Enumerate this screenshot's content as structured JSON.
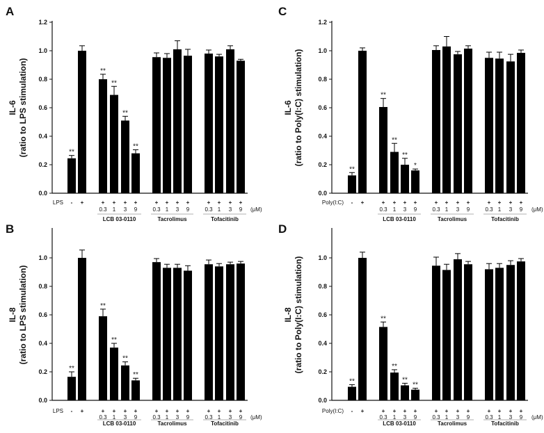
{
  "chart_data": [
    {
      "panel": "A",
      "type": "bar",
      "ylabel_top": "IL-6",
      "ylabel_bottom": "(ratio to LPS stimulation)",
      "ylim": [
        0,
        1.2
      ],
      "yticks": [
        "0.0",
        "0.2",
        "0.4",
        "0.6",
        "0.8",
        "1.0",
        "1.2"
      ],
      "stim_label": "LPS",
      "unit_label": "(μM)",
      "groups": [
        "LCB 03-0110",
        "Tacrolimus",
        "Tofacitinib"
      ],
      "conc_labels": [
        "0.3",
        "1",
        "3",
        "9"
      ],
      "control_labels": [
        "-",
        "+"
      ],
      "values": [
        0.245,
        1.0,
        0.8,
        0.69,
        0.51,
        0.28,
        0.955,
        0.95,
        1.01,
        0.965,
        0.98,
        0.96,
        1.01,
        0.93
      ],
      "errors": [
        0.02,
        0.035,
        0.035,
        0.06,
        0.03,
        0.025,
        0.03,
        0.03,
        0.06,
        0.045,
        0.025,
        0.015,
        0.025,
        0.01
      ],
      "significance": [
        "**",
        "",
        "**",
        "**",
        "**",
        "**",
        "",
        "",
        "",
        "",
        "",
        "",
        "",
        ""
      ]
    },
    {
      "panel": "B",
      "type": "bar",
      "ylabel_top": "IL-8",
      "ylabel_bottom": "(ratio to LPS stimulation)",
      "ylim": [
        0,
        1.2
      ],
      "yticks": [
        "0.0",
        "0.2",
        "0.4",
        "0.6",
        "0.8",
        "1.0"
      ],
      "stim_label": "LPS",
      "unit_label": "(μM)",
      "groups": [
        "LCB 03-0110",
        "Tacrolimus",
        "Tofacitinib"
      ],
      "conc_labels": [
        "0.3",
        "1",
        "3",
        "9"
      ],
      "control_labels": [
        "-",
        "+"
      ],
      "values": [
        0.165,
        1.0,
        0.59,
        0.37,
        0.245,
        0.14,
        0.97,
        0.93,
        0.93,
        0.91,
        0.955,
        0.94,
        0.955,
        0.96
      ],
      "errors": [
        0.035,
        0.055,
        0.05,
        0.03,
        0.025,
        0.015,
        0.025,
        0.025,
        0.025,
        0.035,
        0.03,
        0.02,
        0.015,
        0.015
      ],
      "significance": [
        "**",
        "",
        "**",
        "**",
        "**",
        "**",
        "",
        "",
        "",
        "",
        "",
        "",
        "",
        ""
      ]
    },
    {
      "panel": "C",
      "type": "bar",
      "ylabel_top": "IL-6",
      "ylabel_bottom": "(ratio to Poly(I:C) stimulation)",
      "ylim": [
        0,
        1.2
      ],
      "yticks": [
        "0.0",
        "0.2",
        "0.4",
        "0.6",
        "0.8",
        "1.0",
        "1.2"
      ],
      "stim_label": "Poly(I:C)",
      "unit_label": "(μM)",
      "groups": [
        "LCB 03-0110",
        "Tacrolimus",
        "Tofacitinib"
      ],
      "conc_labels": [
        "0.3",
        "1",
        "3",
        "9"
      ],
      "control_labels": [
        "-",
        "+"
      ],
      "values": [
        0.125,
        1.0,
        0.605,
        0.29,
        0.2,
        0.16,
        1.005,
        1.03,
        0.975,
        1.015,
        0.95,
        0.945,
        0.925,
        0.985
      ],
      "errors": [
        0.02,
        0.02,
        0.06,
        0.06,
        0.045,
        0.01,
        0.03,
        0.07,
        0.02,
        0.02,
        0.04,
        0.045,
        0.05,
        0.02
      ],
      "significance": [
        "**",
        "",
        "**",
        "**",
        "**",
        "*",
        "",
        "",
        "",
        "",
        "",
        "",
        "",
        ""
      ]
    },
    {
      "panel": "D",
      "type": "bar",
      "ylabel_top": "IL-8",
      "ylabel_bottom": "(ratio to Poly(I:C) stimulation)",
      "ylim": [
        0,
        1.2
      ],
      "yticks": [
        "0.0",
        "0.2",
        "0.4",
        "0.6",
        "0.8",
        "1.0"
      ],
      "stim_label": "Poly(I:C)",
      "unit_label": "(μM)",
      "groups": [
        "LCB 03-0110",
        "Tacrolimus",
        "Tofacitinib"
      ],
      "conc_labels": [
        "0.3",
        "1",
        "3",
        "9"
      ],
      "control_labels": [
        "-",
        "+"
      ],
      "values": [
        0.095,
        1.0,
        0.515,
        0.195,
        0.105,
        0.075,
        0.945,
        0.915,
        0.99,
        0.955,
        0.92,
        0.93,
        0.95,
        0.975
      ],
      "errors": [
        0.015,
        0.04,
        0.035,
        0.02,
        0.015,
        0.01,
        0.06,
        0.04,
        0.04,
        0.02,
        0.04,
        0.03,
        0.03,
        0.02
      ],
      "significance": [
        "**",
        "",
        "**",
        "**",
        "**",
        "**",
        "",
        "",
        "",
        "",
        "",
        "",
        "",
        ""
      ]
    }
  ]
}
